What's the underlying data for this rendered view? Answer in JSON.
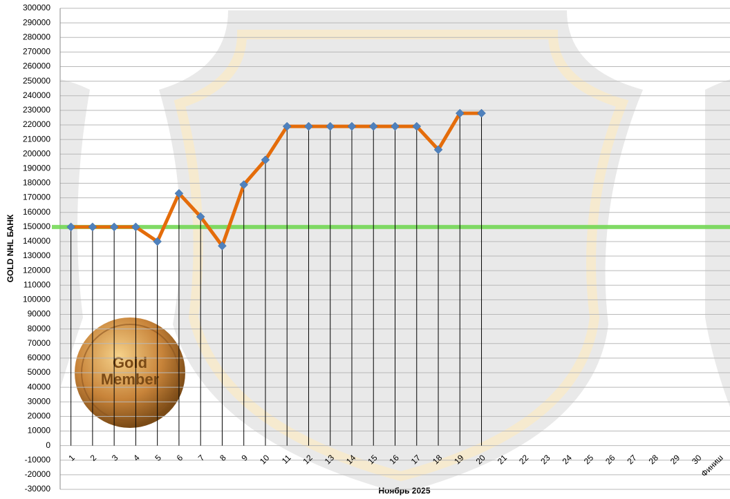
{
  "chart_data": {
    "type": "line",
    "y_label": "GOLD NHL БАНК",
    "x_label": "Ноябрь 2025",
    "categories": [
      "1",
      "2",
      "3",
      "4",
      "5",
      "6",
      "7",
      "8",
      "9",
      "10",
      "11",
      "12",
      "13",
      "14",
      "15",
      "16",
      "17",
      "18",
      "19",
      "20",
      "21",
      "22",
      "23",
      "24",
      "25",
      "26",
      "27",
      "28",
      "29",
      "30",
      "Финиш"
    ],
    "series": [
      {
        "color": "#e46c0a",
        "marker_color": "#4f81bd",
        "values": [
          150000,
          150000,
          150000,
          150000,
          140000,
          173000,
          157000,
          137000,
          179000,
          196000,
          219000,
          219000,
          219000,
          219000,
          219000,
          219000,
          219000,
          203000,
          228000,
          228000,
          null,
          null,
          null,
          null,
          null,
          null,
          null,
          null,
          null,
          null,
          null
        ]
      }
    ],
    "reference_line": {
      "value": 150000,
      "color": "#6fd850"
    },
    "ylim": [
      -30000,
      300000
    ],
    "yticks": [
      -30000,
      -20000,
      -10000,
      0,
      10000,
      20000,
      30000,
      40000,
      50000,
      60000,
      70000,
      80000,
      90000,
      100000,
      110000,
      120000,
      130000,
      140000,
      150000,
      160000,
      170000,
      180000,
      190000,
      200000,
      210000,
      220000,
      230000,
      240000,
      250000,
      260000,
      270000,
      280000,
      290000,
      300000
    ],
    "grid": true,
    "drop_lines": true
  },
  "badge": {
    "lines": [
      "Gold",
      "Member"
    ]
  }
}
